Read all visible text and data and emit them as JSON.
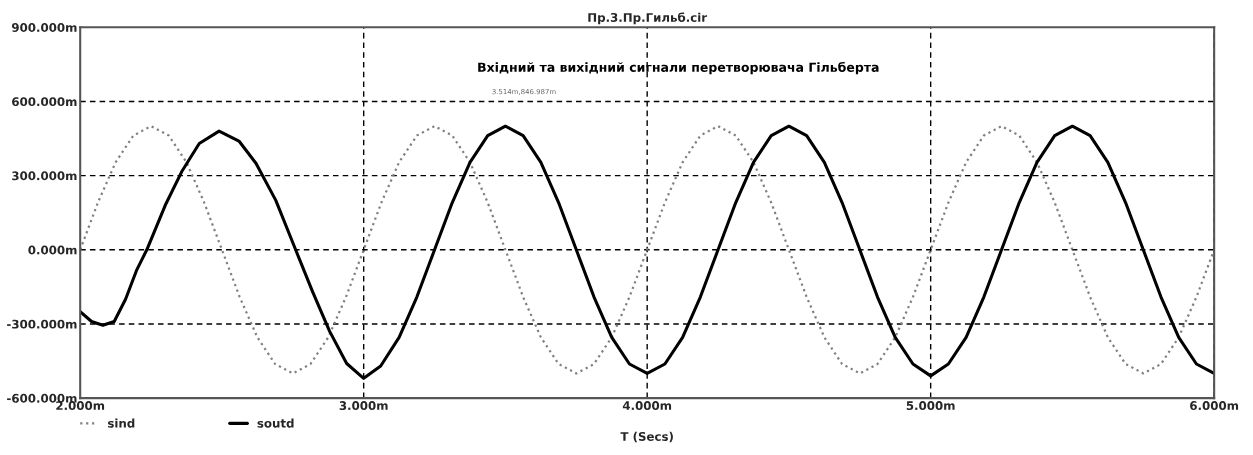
{
  "chart_data": {
    "type": "line",
    "title": "Пр.3.Пр.Гильб.cir",
    "xlabel": "T (Secs)",
    "annotations": [
      "Вхідний та вихідний сигнали перетворювача Гільберта",
      "3.514m,846.987m"
    ],
    "xlim": [
      2,
      6
    ],
    "ylim": [
      -600,
      900
    ],
    "xticks": [
      {
        "value": 2,
        "label": "2.000m"
      },
      {
        "value": 3,
        "label": "3.000m"
      },
      {
        "value": 4,
        "label": "4.000m"
      },
      {
        "value": 5,
        "label": "5.000m"
      },
      {
        "value": 6,
        "label": "6.000m"
      }
    ],
    "yticks": [
      {
        "value": -600,
        "label": "-600.000m"
      },
      {
        "value": -300,
        "label": "-300.000m"
      },
      {
        "value": 0,
        "label": "0.000m"
      },
      {
        "value": 300,
        "label": "300.000m"
      },
      {
        "value": 600,
        "label": "600.000m"
      },
      {
        "value": 900,
        "label": "900.000m"
      }
    ],
    "grid": true,
    "legend": "bottom",
    "series": [
      {
        "name": "sind",
        "color": "#808080",
        "line_style": "dotted",
        "x": [
          2,
          2.0625,
          2.125,
          2.1875,
          2.25,
          2.3125,
          2.375,
          2.4375,
          2.5,
          2.5625,
          2.625,
          2.6875,
          2.75,
          2.8125,
          2.875,
          2.9375,
          3,
          3.0625,
          3.125,
          3.1875,
          3.25,
          3.3125,
          3.375,
          3.4375,
          3.5,
          3.5625,
          3.625,
          3.6875,
          3.75,
          3.8125,
          3.875,
          3.9375,
          4,
          4.0625,
          4.125,
          4.1875,
          4.25,
          4.3125,
          4.375,
          4.4375,
          4.5,
          4.5625,
          4.625,
          4.6875,
          4.75,
          4.8125,
          4.875,
          4.9375,
          5,
          5.0625,
          5.125,
          5.1875,
          5.25,
          5.3125,
          5.375,
          5.4375,
          5.5,
          5.5625,
          5.625,
          5.6875,
          5.75,
          5.8125,
          5.875,
          5.9375,
          6
        ],
        "values": [
          0,
          191,
          354,
          462,
          500,
          462,
          354,
          191,
          0,
          -191,
          -354,
          -462,
          -500,
          -462,
          -354,
          -191,
          0,
          191,
          354,
          462,
          500,
          462,
          354,
          191,
          0,
          -191,
          -354,
          -462,
          -500,
          -462,
          -354,
          -191,
          0,
          191,
          354,
          462,
          500,
          462,
          354,
          191,
          0,
          -191,
          -354,
          -462,
          -500,
          -462,
          -354,
          -191,
          0,
          191,
          354,
          462,
          500,
          462,
          354,
          191,
          0,
          -191,
          -354,
          -462,
          -500,
          -462,
          -354,
          -191,
          0
        ]
      },
      {
        "name": "soutd",
        "color": "#000000",
        "line_style": "solid",
        "x": [
          2,
          2.04,
          2.08,
          2.12,
          2.16,
          2.2,
          2.235,
          2.3,
          2.36,
          2.42,
          2.49,
          2.56,
          2.62,
          2.69,
          2.76,
          2.82,
          2.88,
          2.94,
          3,
          3.06,
          3.125,
          3.1875,
          3.25,
          3.3125,
          3.375,
          3.4375,
          3.5,
          3.5625,
          3.625,
          3.6875,
          3.75,
          3.8125,
          3.875,
          3.9375,
          4,
          4.0625,
          4.125,
          4.1875,
          4.25,
          4.3125,
          4.375,
          4.4375,
          4.5,
          4.5625,
          4.625,
          4.6875,
          4.75,
          4.8125,
          4.875,
          4.9375,
          5,
          5.0625,
          5.125,
          5.1875,
          5.25,
          5.3125,
          5.375,
          5.4375,
          5.5,
          5.5625,
          5.625,
          5.6875,
          5.75,
          5.8125,
          5.875,
          5.9375,
          6
        ],
        "values": [
          -250,
          -290,
          -305,
          -290,
          -200,
          -80,
          0,
          180,
          320,
          430,
          480,
          440,
          350,
          200,
          0,
          -170,
          -330,
          -460,
          -520,
          -470,
          -354,
          -191,
          0,
          191,
          354,
          462,
          500,
          462,
          354,
          191,
          0,
          -191,
          -354,
          -462,
          -500,
          -462,
          -354,
          -191,
          0,
          191,
          354,
          462,
          500,
          462,
          354,
          191,
          0,
          -191,
          -354,
          -462,
          -510,
          -462,
          -354,
          -191,
          0,
          191,
          354,
          462,
          500,
          462,
          354,
          191,
          0,
          -191,
          -354,
          -462,
          -500
        ]
      }
    ]
  }
}
